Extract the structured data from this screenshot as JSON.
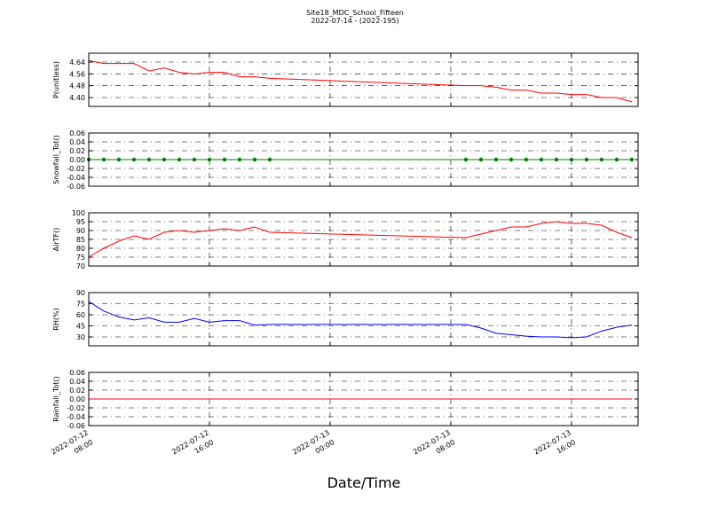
{
  "chart_data": [
    {
      "type": "line",
      "title": "Site18_MDC_School_Fifteen",
      "subtitle": "2022-07-14 - (2022-195)",
      "ylabel": "P(unitless)",
      "color": "#ff0000",
      "x": [
        "2022-07-12 08:00",
        "2022-07-12 09:00",
        "2022-07-12 10:00",
        "2022-07-12 11:00",
        "2022-07-12 12:00",
        "2022-07-12 13:00",
        "2022-07-12 14:00",
        "2022-07-12 15:00",
        "2022-07-12 16:00",
        "2022-07-12 17:00",
        "2022-07-12 18:00",
        "2022-07-12 19:00",
        "2022-07-12 20:00",
        "2022-07-13 09:00",
        "2022-07-13 10:00",
        "2022-07-13 11:00",
        "2022-07-13 12:00",
        "2022-07-13 13:00",
        "2022-07-13 14:00",
        "2022-07-13 15:00",
        "2022-07-13 16:00",
        "2022-07-13 17:00",
        "2022-07-13 18:00",
        "2022-07-13 19:00",
        "2022-07-13 20:00"
      ],
      "values": [
        4.65,
        4.63,
        4.63,
        4.63,
        4.58,
        4.6,
        4.57,
        4.56,
        4.57,
        4.57,
        4.54,
        4.54,
        4.53,
        4.48,
        4.48,
        4.47,
        4.45,
        4.45,
        4.43,
        4.43,
        4.42,
        4.42,
        4.4,
        4.4,
        4.37
      ],
      "xlim": [
        "2022-07-12 08:00",
        "2022-07-13 20:25"
      ],
      "xticks": [
        "2022-07-12 08:00",
        "2022-07-12 16:00",
        "2022-07-13 00:00",
        "2022-07-13 08:00",
        "2022-07-13 16:00"
      ],
      "ylim": [
        4.34,
        4.7
      ],
      "yticks": [
        {
          "value": 4.4,
          "label": "4.40"
        },
        {
          "value": 4.48,
          "label": "4.48"
        },
        {
          "value": 4.56,
          "label": "4.56"
        },
        {
          "value": 4.64,
          "label": "4.64"
        }
      ],
      "grid": true
    },
    {
      "type": "line",
      "ylabel": "Snowfall_Tot()",
      "color": "#008000",
      "marker": "o",
      "x": [
        "2022-07-12 08:00",
        "2022-07-12 09:00",
        "2022-07-12 10:00",
        "2022-07-12 11:00",
        "2022-07-12 12:00",
        "2022-07-12 13:00",
        "2022-07-12 14:00",
        "2022-07-12 15:00",
        "2022-07-12 16:00",
        "2022-07-12 17:00",
        "2022-07-12 18:00",
        "2022-07-12 19:00",
        "2022-07-12 20:00",
        "2022-07-13 09:00",
        "2022-07-13 10:00",
        "2022-07-13 11:00",
        "2022-07-13 12:00",
        "2022-07-13 13:00",
        "2022-07-13 14:00",
        "2022-07-13 15:00",
        "2022-07-13 16:00",
        "2022-07-13 17:00",
        "2022-07-13 18:00",
        "2022-07-13 19:00",
        "2022-07-13 20:00"
      ],
      "values": [
        0,
        0,
        0,
        0,
        0,
        0,
        0,
        0,
        0,
        0,
        0,
        0,
        0,
        0,
        0,
        0,
        0,
        0,
        0,
        0,
        0,
        0,
        0,
        0,
        0
      ],
      "xlim": [
        "2022-07-12 08:00",
        "2022-07-13 20:25"
      ],
      "xticks": [
        "2022-07-12 08:00",
        "2022-07-12 16:00",
        "2022-07-13 00:00",
        "2022-07-13 08:00",
        "2022-07-13 16:00"
      ],
      "ylim": [
        -0.06,
        0.06
      ],
      "yticks": [
        -0.06,
        -0.04,
        -0.02,
        {
          "value": 0,
          "label": "0.00"
        },
        0.02,
        0.04,
        0.06
      ],
      "grid": true
    },
    {
      "type": "line",
      "ylabel": "AirTF()",
      "color": "#ff0000",
      "x": [
        "2022-07-12 08:00",
        "2022-07-12 09:00",
        "2022-07-12 10:00",
        "2022-07-12 11:00",
        "2022-07-12 12:00",
        "2022-07-12 13:00",
        "2022-07-12 14:00",
        "2022-07-12 15:00",
        "2022-07-12 16:00",
        "2022-07-12 17:00",
        "2022-07-12 18:00",
        "2022-07-12 19:00",
        "2022-07-12 20:00",
        "2022-07-13 09:00",
        "2022-07-13 10:00",
        "2022-07-13 11:00",
        "2022-07-13 12:00",
        "2022-07-13 13:00",
        "2022-07-13 14:00",
        "2022-07-13 15:00",
        "2022-07-13 16:00",
        "2022-07-13 17:00",
        "2022-07-13 18:00",
        "2022-07-13 19:00",
        "2022-07-13 20:00"
      ],
      "values": [
        75,
        80,
        84,
        87,
        85,
        89,
        90,
        89,
        90,
        91,
        90,
        92,
        89,
        86,
        88,
        90,
        92,
        92,
        94,
        95,
        94,
        94,
        93,
        89,
        86
      ],
      "xlim": [
        "2022-07-12 08:00",
        "2022-07-13 20:25"
      ],
      "xticks": [
        "2022-07-12 08:00",
        "2022-07-12 16:00",
        "2022-07-13 00:00",
        "2022-07-13 08:00",
        "2022-07-13 16:00"
      ],
      "ylim": [
        70,
        100
      ],
      "yticks": [
        70,
        75,
        80,
        85,
        90,
        95,
        100
      ],
      "grid": true
    },
    {
      "type": "line",
      "ylabel": "RH(%)",
      "color": "#0000ff",
      "x": [
        "2022-07-12 08:00",
        "2022-07-12 09:00",
        "2022-07-12 10:00",
        "2022-07-12 11:00",
        "2022-07-12 12:00",
        "2022-07-12 13:00",
        "2022-07-12 14:00",
        "2022-07-12 15:00",
        "2022-07-12 16:00",
        "2022-07-12 17:00",
        "2022-07-12 18:00",
        "2022-07-12 19:00",
        "2022-07-12 20:00",
        "2022-07-13 09:00",
        "2022-07-13 10:00",
        "2022-07-13 11:00",
        "2022-07-13 12:00",
        "2022-07-13 13:00",
        "2022-07-13 14:00",
        "2022-07-13 15:00",
        "2022-07-13 16:00",
        "2022-07-13 17:00",
        "2022-07-13 18:00",
        "2022-07-13 19:00",
        "2022-07-13 20:00"
      ],
      "values": [
        78,
        65,
        57,
        53,
        56,
        50,
        50,
        55,
        50,
        52,
        52,
        46,
        47,
        47,
        42,
        35,
        33,
        31,
        30,
        30,
        29,
        30,
        38,
        43,
        46
      ],
      "xlim": [
        "2022-07-12 08:00",
        "2022-07-13 20:25"
      ],
      "xticks": [
        "2022-07-12 08:00",
        "2022-07-12 16:00",
        "2022-07-13 00:00",
        "2022-07-13 08:00",
        "2022-07-13 16:00"
      ],
      "ylim": [
        18,
        90
      ],
      "yticks": [
        30,
        45,
        60,
        75,
        90
      ],
      "grid": true
    },
    {
      "type": "line",
      "ylabel": "Rainfall_Tot()",
      "xlabel": "Date/Time",
      "color": "#ff0000",
      "x": [
        "2022-07-12 08:00",
        "2022-07-12 09:00",
        "2022-07-12 10:00",
        "2022-07-12 11:00",
        "2022-07-12 12:00",
        "2022-07-12 13:00",
        "2022-07-12 14:00",
        "2022-07-12 15:00",
        "2022-07-12 16:00",
        "2022-07-12 17:00",
        "2022-07-12 18:00",
        "2022-07-12 19:00",
        "2022-07-12 20:00",
        "2022-07-13 09:00",
        "2022-07-13 10:00",
        "2022-07-13 11:00",
        "2022-07-13 12:00",
        "2022-07-13 13:00",
        "2022-07-13 14:00",
        "2022-07-13 15:00",
        "2022-07-13 16:00",
        "2022-07-13 17:00",
        "2022-07-13 18:00",
        "2022-07-13 19:00",
        "2022-07-13 20:00"
      ],
      "values": [
        0,
        0,
        0,
        0,
        0,
        0,
        0,
        0,
        0,
        0,
        0,
        0,
        0,
        0,
        0,
        0,
        0,
        0,
        0,
        0,
        0,
        0,
        0,
        0,
        0
      ],
      "xlim": [
        "2022-07-12 08:00",
        "2022-07-13 20:25"
      ],
      "xticks": [
        {
          "value": "2022-07-12 08:00",
          "label": [
            "2022-07-12",
            "08:00"
          ]
        },
        {
          "value": "2022-07-12 16:00",
          "label": [
            "2022-07-12",
            "16:00"
          ]
        },
        {
          "value": "2022-07-13 00:00",
          "label": [
            "2022-07-13",
            "00:00"
          ]
        },
        {
          "value": "2022-07-13 08:00",
          "label": [
            "2022-07-13",
            "08:00"
          ]
        },
        {
          "value": "2022-07-13 16:00",
          "label": [
            "2022-07-13",
            "16:00"
          ]
        }
      ],
      "ylim": [
        -0.06,
        0.06
      ],
      "yticks": [
        -0.06,
        -0.04,
        -0.02,
        {
          "value": 0,
          "label": "0.00"
        },
        0.02,
        0.04,
        0.06
      ],
      "grid": true
    }
  ]
}
